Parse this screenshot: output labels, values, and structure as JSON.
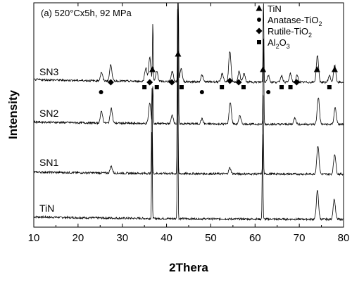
{
  "chart_data": {
    "type": "line",
    "annotation": "(a)  520°Cx5h, 92 MPa",
    "xlabel": "2Thera",
    "ylabel": "Intensity",
    "xlim": [
      10,
      80
    ],
    "xticks": [
      10,
      20,
      30,
      40,
      50,
      60,
      70,
      80
    ],
    "grid": false,
    "legend_position": "top-right",
    "legend": [
      {
        "marker": "triangle",
        "label": "TiN",
        "sub": ""
      },
      {
        "marker": "circle",
        "label": "Anatase-TiO",
        "sub": "2"
      },
      {
        "marker": "diamond",
        "label": "Rutile-TiO",
        "sub": "2"
      },
      {
        "marker": "square",
        "label": "Al",
        "sub": "2",
        "label2": "O",
        "sub2": "3"
      }
    ],
    "series": [
      {
        "name": "TiN",
        "baseline": 0.04,
        "peaks": [
          [
            36.7,
            0.52
          ],
          [
            42.5,
            1.0
          ],
          [
            61.7,
            0.52
          ],
          [
            74.1,
            0.17
          ],
          [
            77.9,
            0.12
          ]
        ]
      },
      {
        "name": "SN1",
        "baseline": 0.035,
        "peaks": [
          [
            27.5,
            0.04
          ],
          [
            36.7,
            0.52
          ],
          [
            42.5,
            1.0
          ],
          [
            54.3,
            0.035
          ],
          [
            61.8,
            0.52
          ],
          [
            74.2,
            0.17
          ],
          [
            78.0,
            0.12
          ]
        ]
      },
      {
        "name": "SN2",
        "baseline": 0.04,
        "peaks": [
          [
            25.3,
            0.07
          ],
          [
            27.5,
            0.09
          ],
          [
            36.2,
            0.12
          ],
          [
            36.9,
            0.22
          ],
          [
            41.3,
            0.05
          ],
          [
            42.6,
            1.0
          ],
          [
            48.0,
            0.03
          ],
          [
            54.4,
            0.13
          ],
          [
            56.6,
            0.05
          ],
          [
            61.9,
            0.52
          ],
          [
            69.0,
            0.04
          ],
          [
            74.3,
            0.16
          ],
          [
            78.1,
            0.1
          ]
        ]
      },
      {
        "name": "SN3",
        "baseline": 0.045,
        "peaks": [
          [
            25.3,
            0.05
          ],
          [
            27.4,
            0.1
          ],
          [
            35.3,
            0.08
          ],
          [
            36.2,
            0.14
          ],
          [
            36.9,
            0.35
          ],
          [
            37.8,
            0.06
          ],
          [
            41.3,
            0.06
          ],
          [
            42.6,
            1.0
          ],
          [
            43.3,
            0.08
          ],
          [
            48.0,
            0.04
          ],
          [
            52.6,
            0.05
          ],
          [
            54.3,
            0.18
          ],
          [
            56.4,
            0.06
          ],
          [
            57.5,
            0.05
          ],
          [
            61.9,
            0.52
          ],
          [
            63.0,
            0.04
          ],
          [
            66.0,
            0.04
          ],
          [
            68.0,
            0.05
          ],
          [
            69.5,
            0.04
          ],
          [
            74.1,
            0.16
          ],
          [
            76.8,
            0.04
          ],
          [
            78.0,
            0.1
          ]
        ]
      }
    ],
    "phase_markers": {
      "SN3": [
        {
          "x": 25.2,
          "marker": "circle"
        },
        {
          "x": 27.4,
          "marker": "diamond"
        },
        {
          "x": 35.0,
          "marker": "square"
        },
        {
          "x": 36.2,
          "marker": "diamond"
        },
        {
          "x": 36.8,
          "marker": "triangle"
        },
        {
          "x": 37.8,
          "marker": "square"
        },
        {
          "x": 41.2,
          "marker": "diamond"
        },
        {
          "x": 42.6,
          "marker": "triangle"
        },
        {
          "x": 43.4,
          "marker": "square"
        },
        {
          "x": 48.0,
          "marker": "circle"
        },
        {
          "x": 52.5,
          "marker": "square"
        },
        {
          "x": 54.3,
          "marker": "diamond"
        },
        {
          "x": 56.3,
          "marker": "diamond"
        },
        {
          "x": 57.4,
          "marker": "square"
        },
        {
          "x": 61.8,
          "marker": "triangle"
        },
        {
          "x": 63.0,
          "marker": "circle"
        },
        {
          "x": 66.0,
          "marker": "square"
        },
        {
          "x": 68.0,
          "marker": "square"
        },
        {
          "x": 69.4,
          "marker": "diamond"
        },
        {
          "x": 74.0,
          "marker": "triangle"
        },
        {
          "x": 76.8,
          "marker": "square"
        },
        {
          "x": 78.0,
          "marker": "triangle"
        }
      ]
    }
  }
}
